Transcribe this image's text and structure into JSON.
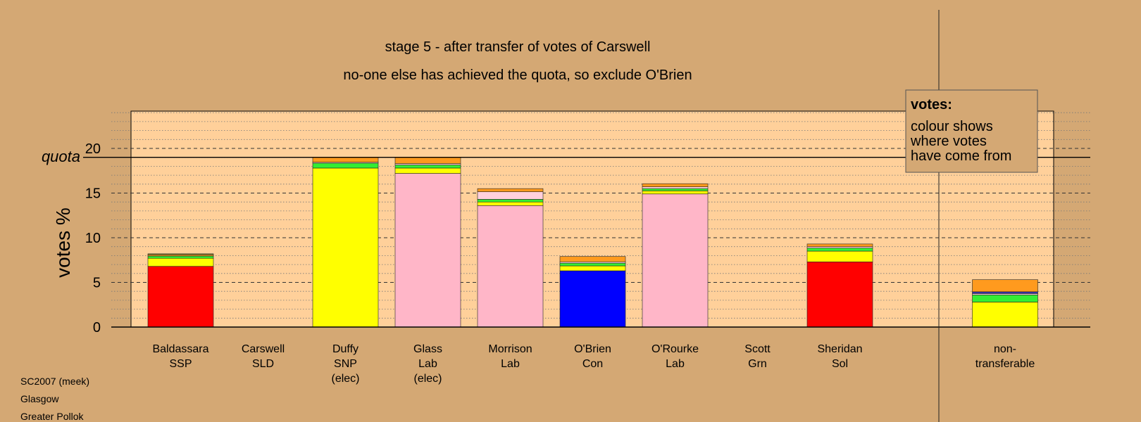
{
  "chart_data": {
    "type": "bar",
    "stacked": true,
    "title": "stage 5 - after transfer of votes of Carswell",
    "subtitle": "no-one else has achieved the quota, so exclude O'Brien",
    "ylabel": "votes %",
    "ylim": [
      0,
      24
    ],
    "yticks": [
      0,
      5,
      10,
      15,
      20
    ],
    "quota": 19,
    "quota_label": "quota",
    "grid": true,
    "legend": {
      "title": "votes:",
      "lines": [
        "colour shows",
        "where votes",
        "have come from"
      ],
      "position": "top-right"
    },
    "colors": {
      "ssp": "#ff0000",
      "snp": "#ffff00",
      "lab": "#ffb6c8",
      "con": "#0000ff",
      "sol": "#ff0000",
      "green": "#33ee33",
      "orange": "#ff9a1e",
      "lightpink": "#ffd0dc",
      "olive": "#888833",
      "navy": "#3333aa"
    },
    "categories": [
      {
        "name": "Baldassara",
        "party": "SSP",
        "status": ""
      },
      {
        "name": "Carswell",
        "party": "SLD",
        "status": ""
      },
      {
        "name": "Duffy",
        "party": "SNP",
        "status": "(elec)"
      },
      {
        "name": "Glass",
        "party": "Lab",
        "status": "(elec)"
      },
      {
        "name": "Morrison",
        "party": "Lab",
        "status": ""
      },
      {
        "name": "O'Brien",
        "party": "Con",
        "status": ""
      },
      {
        "name": "O'Rourke",
        "party": "Lab",
        "status": ""
      },
      {
        "name": "Scott",
        "party": "Grn",
        "status": ""
      },
      {
        "name": "Sheridan",
        "party": "Sol",
        "status": ""
      }
    ],
    "bars": [
      {
        "segments": [
          {
            "value": 6.8,
            "color": "#ff0000"
          },
          {
            "value": 0.9,
            "color": "#ffff00"
          },
          {
            "value": 0.25,
            "color": "#33ee33"
          },
          {
            "value": 0.15,
            "color": "#ff9a1e"
          },
          {
            "value": 0.1,
            "color": "#888833"
          }
        ]
      },
      {
        "segments": []
      },
      {
        "segments": [
          {
            "value": 17.8,
            "color": "#ffff00"
          },
          {
            "value": 0.55,
            "color": "#33ee33"
          },
          {
            "value": 0.1,
            "color": "#ffd0dc"
          },
          {
            "value": 0.55,
            "color": "#ff9a1e"
          }
        ]
      },
      {
        "segments": [
          {
            "value": 17.2,
            "color": "#ffb6c8"
          },
          {
            "value": 0.6,
            "color": "#ffff00"
          },
          {
            "value": 0.35,
            "color": "#33ee33"
          },
          {
            "value": 0.15,
            "color": "#ffd0dc"
          },
          {
            "value": 0.7,
            "color": "#ff9a1e"
          }
        ]
      },
      {
        "segments": [
          {
            "value": 13.6,
            "color": "#ffb6c8"
          },
          {
            "value": 0.4,
            "color": "#ffff00"
          },
          {
            "value": 0.3,
            "color": "#33ee33"
          },
          {
            "value": 0.85,
            "color": "#ffd0dc"
          },
          {
            "value": 0.35,
            "color": "#ff9a1e"
          }
        ]
      },
      {
        "segments": [
          {
            "value": 6.3,
            "color": "#0000ff"
          },
          {
            "value": 0.55,
            "color": "#ffff00"
          },
          {
            "value": 0.3,
            "color": "#33ee33"
          },
          {
            "value": 0.15,
            "color": "#ffd0dc"
          },
          {
            "value": 0.6,
            "color": "#ff9a1e"
          }
        ]
      },
      {
        "segments": [
          {
            "value": 14.9,
            "color": "#ffb6c8"
          },
          {
            "value": 0.35,
            "color": "#ffff00"
          },
          {
            "value": 0.25,
            "color": "#33ee33"
          },
          {
            "value": 0.2,
            "color": "#ffd0dc"
          },
          {
            "value": 0.35,
            "color": "#ff9a1e"
          }
        ]
      },
      {
        "segments": []
      },
      {
        "segments": [
          {
            "value": 7.3,
            "color": "#ff0000"
          },
          {
            "value": 1.2,
            "color": "#ffff00"
          },
          {
            "value": 0.35,
            "color": "#33ee33"
          },
          {
            "value": 0.15,
            "color": "#ffd0dc"
          },
          {
            "value": 0.3,
            "color": "#ff9a1e"
          }
        ]
      }
    ],
    "nontransferable": {
      "label_lines": [
        "non-",
        "transferable"
      ],
      "segments": [
        {
          "value": 2.8,
          "color": "#ffff00"
        },
        {
          "value": 0.8,
          "color": "#33ee33"
        },
        {
          "value": 0.15,
          "color": "#ffd0dc"
        },
        {
          "value": 0.2,
          "color": "#3333aa"
        },
        {
          "value": 1.35,
          "color": "#ff9a1e"
        }
      ]
    }
  },
  "footer": {
    "lines": [
      "SC2007 (meek)",
      "Glasgow",
      "Greater Pollok"
    ]
  }
}
